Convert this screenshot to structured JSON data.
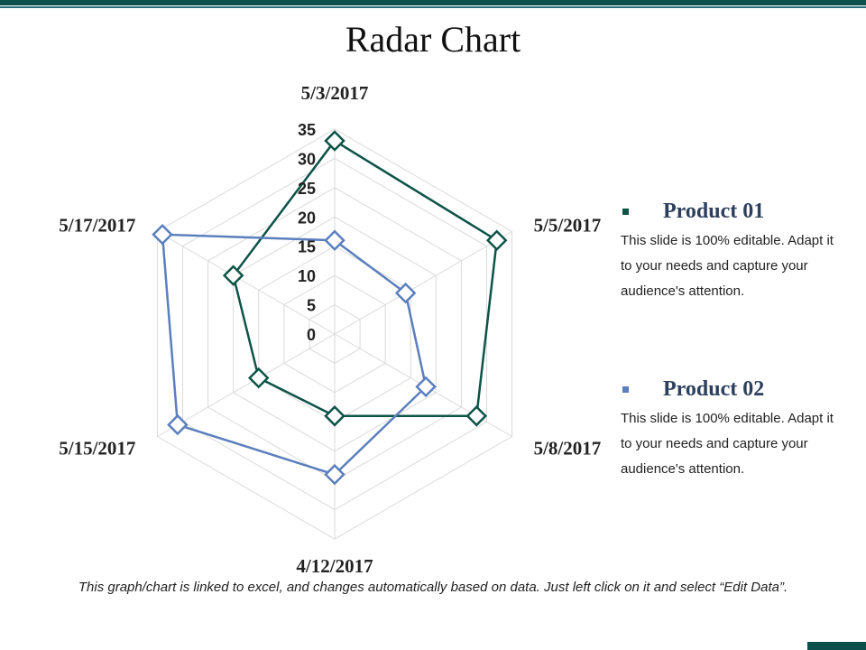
{
  "slide": {
    "title": "Radar Chart",
    "footnote": "This graph/chart is linked to excel, and changes automatically based on data. Just left click on it and select “Edit Data”."
  },
  "legend": [
    {
      "name": "Product 01",
      "color": "#0d5446",
      "description": "This slide is 100% editable. Adapt it to your needs and capture your audience's attention."
    },
    {
      "name": "Product 02",
      "color": "#5b7fbd",
      "description": "This slide is 100% editable. Adapt it to your needs and capture your audience's attention."
    }
  ],
  "chart_data": {
    "type": "radar",
    "categories": [
      "5/3/2017",
      "5/5/2017",
      "5/8/2017",
      "4/12/2017",
      "5/15/2017",
      "5/17/2017"
    ],
    "axis": {
      "min": 0,
      "max": 35,
      "step": 5,
      "ticks": [
        "0",
        "5",
        "10",
        "15",
        "20",
        "25",
        "30",
        "35"
      ]
    },
    "grid": true,
    "legend_position": "right",
    "series": [
      {
        "name": "Product 01",
        "color": "#0d5446",
        "values": [
          33,
          32,
          28,
          14,
          15,
          20
        ]
      },
      {
        "name": "Product 02",
        "color": "#5b7fbd",
        "values": [
          16,
          14,
          18,
          24,
          31,
          34
        ]
      }
    ]
  }
}
